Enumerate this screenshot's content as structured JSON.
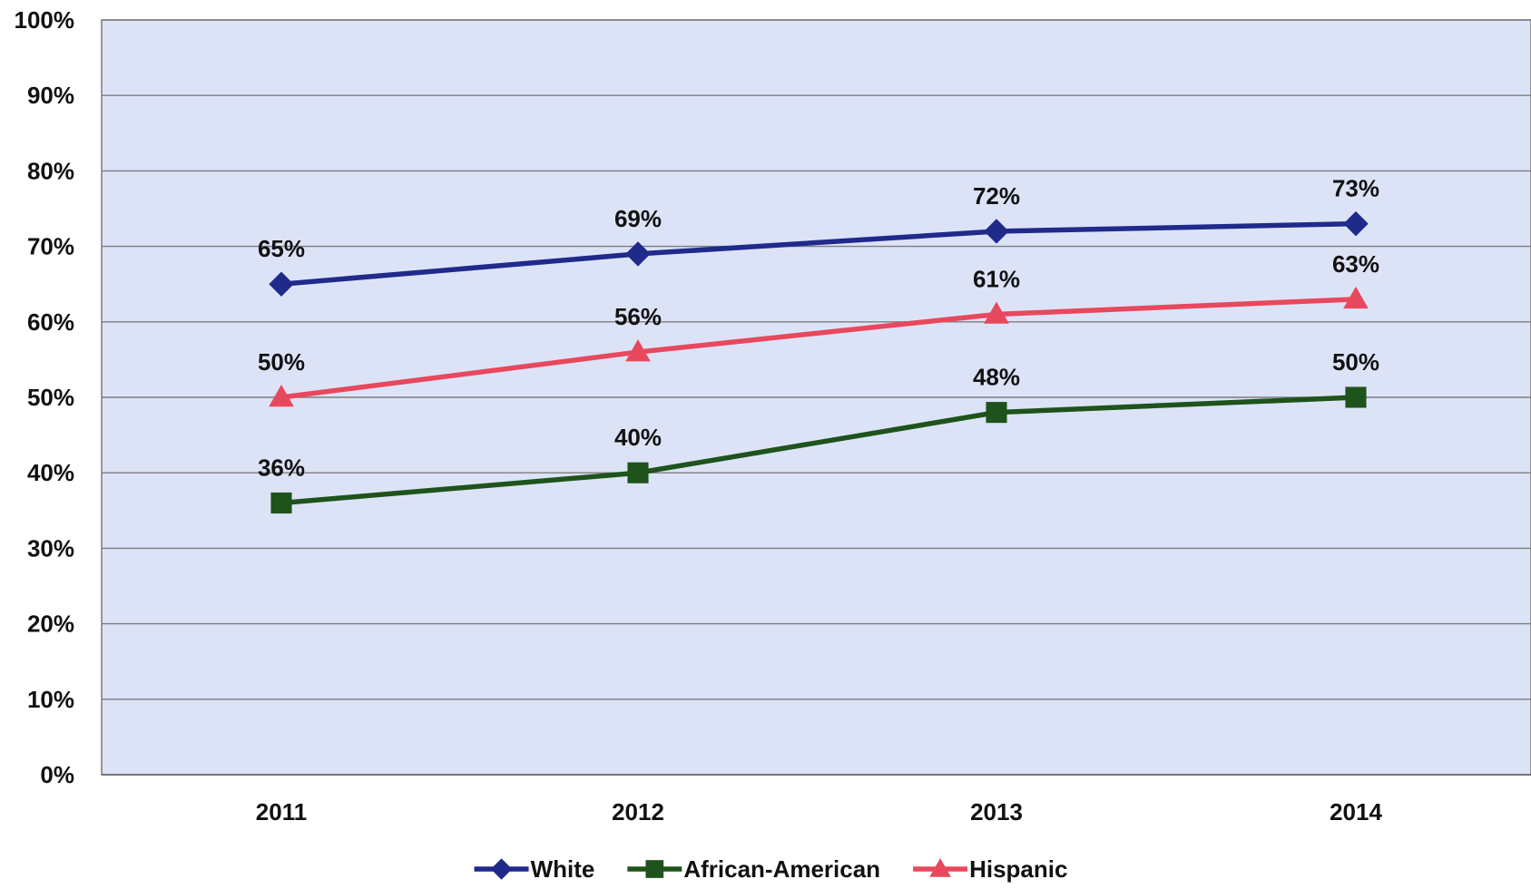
{
  "chart_data": {
    "type": "line",
    "title": "",
    "xlabel": "",
    "ylabel": "",
    "categories": [
      "2011",
      "2012",
      "2013",
      "2014"
    ],
    "ylim": [
      0,
      100
    ],
    "y_ticks": [
      0,
      10,
      20,
      30,
      40,
      50,
      60,
      70,
      80,
      90,
      100
    ],
    "y_tick_labels": [
      "0%",
      "10%",
      "20%",
      "30%",
      "40%",
      "50%",
      "60%",
      "70%",
      "80%",
      "90%",
      "100%"
    ],
    "grid": true,
    "legend_position": "bottom",
    "plot_background": "#dde3f7",
    "series": [
      {
        "name": "White",
        "values": [
          65,
          69,
          72,
          73
        ],
        "labels": [
          "65%",
          "69%",
          "72%",
          "73%"
        ],
        "color": "#1f2a8a",
        "marker": "diamond"
      },
      {
        "name": "African-American",
        "values": [
          36,
          40,
          48,
          50
        ],
        "labels": [
          "36%",
          "40%",
          "48%",
          "50%"
        ],
        "color": "#1e531c",
        "marker": "square"
      },
      {
        "name": "Hispanic",
        "values": [
          50,
          56,
          61,
          63
        ],
        "labels": [
          "50%",
          "56%",
          "61%",
          "63%"
        ],
        "color": "#e8485d",
        "marker": "triangle"
      }
    ]
  }
}
